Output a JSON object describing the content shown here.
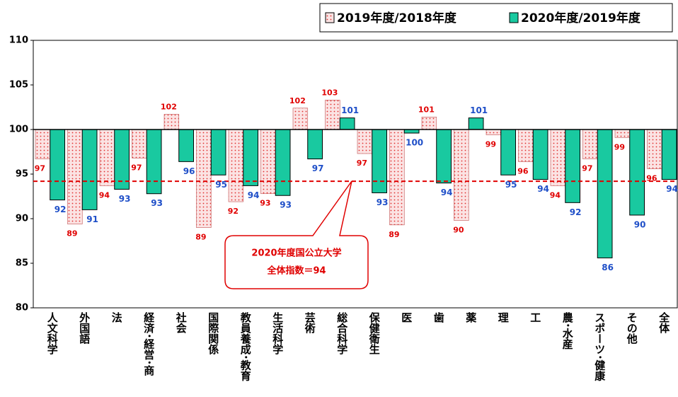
{
  "chart_data": {
    "type": "bar",
    "baseline": 100,
    "categories": [
      "人文科学",
      "外国語",
      "法",
      "経済･経営･商",
      "社会",
      "国際関係",
      "教員養成･教育",
      "生活科学",
      "芸術",
      "総合科学",
      "保健衛生",
      "医",
      "歯",
      "薬",
      "理",
      "工",
      "農･水産",
      "スポーツ･健康",
      "その他",
      "全体"
    ],
    "series": [
      {
        "name": "2019年度/2018年度",
        "color": "#f9dada",
        "dot_color": "#e03030",
        "values": [
          96.7,
          89.4,
          93.7,
          96.8,
          101.7,
          89.0,
          91.9,
          92.8,
          102.4,
          103.3,
          97.3,
          89.3,
          101.4,
          89.8,
          99.4,
          96.4,
          93.7,
          96.7,
          99.1,
          95.6
        ],
        "value_labels": [
          "97",
          "89",
          "94",
          "97",
          "102",
          "89",
          "92",
          "93",
          "102",
          "103",
          "97",
          "89",
          "101",
          "90",
          "99",
          "96",
          "94",
          "97",
          "99",
          "96"
        ],
        "label_color": "#e00000"
      },
      {
        "name": "2020年度/2019年度",
        "color": "#19c9a0",
        "values": [
          92.1,
          91.0,
          93.3,
          92.8,
          96.4,
          94.9,
          93.7,
          92.6,
          96.7,
          101.3,
          92.9,
          99.6,
          94.0,
          101.3,
          94.9,
          94.4,
          91.8,
          85.6,
          90.4,
          94.4
        ],
        "value_labels": [
          "92",
          "91",
          "93",
          "93",
          "96",
          "95",
          "94",
          "93",
          "97",
          "101",
          "93",
          "100",
          "94",
          "101",
          "95",
          "94",
          "92",
          "86",
          "90",
          "94"
        ],
        "label_color": "#1f4fc8"
      }
    ],
    "ylim": [
      80,
      110
    ],
    "yticks": [
      80,
      85,
      90,
      95,
      100,
      105,
      110
    ],
    "reference_line": {
      "value": 94.2,
      "color": "#e00000"
    },
    "annotation": [
      "2020年度国公立大学",
      "全体指数＝94"
    ],
    "legend": "top-right"
  }
}
